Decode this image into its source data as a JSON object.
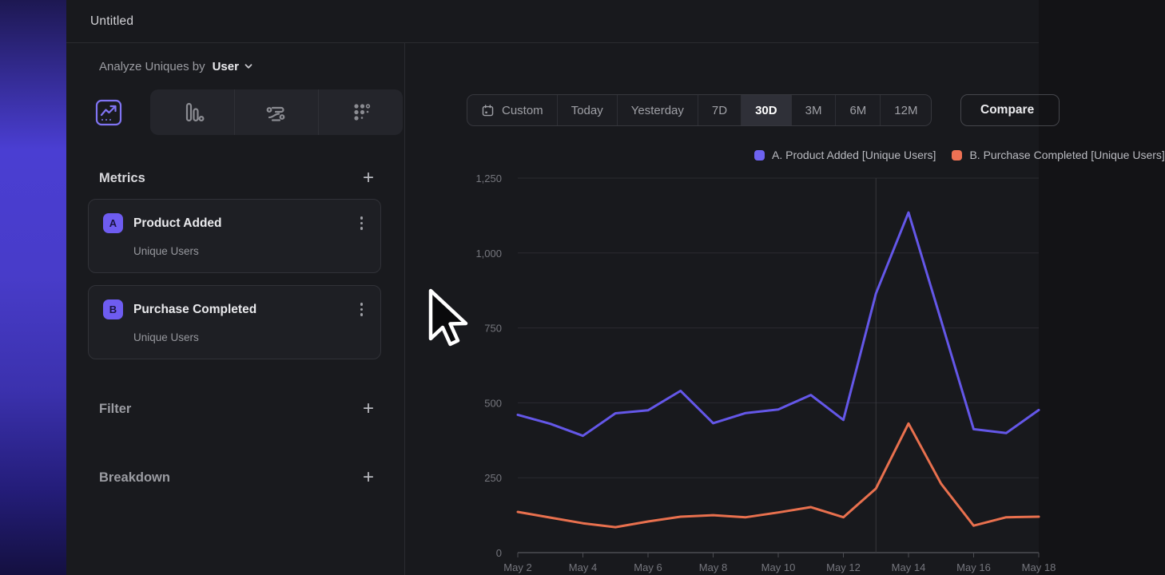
{
  "window": {
    "title": "Untitled"
  },
  "sidebar": {
    "analyze_prefix": "Analyze Uniques by",
    "analyze_value": "User",
    "chart_type_tabs": [
      "line-chart",
      "bar-chart",
      "flow",
      "funnel-dots"
    ],
    "active_chart_type": "line-chart",
    "metrics": {
      "title": "Metrics",
      "items": [
        {
          "badge": "A",
          "name": "Product Added",
          "sub": "Unique Users"
        },
        {
          "badge": "B",
          "name": "Purchase Completed",
          "sub": "Unique Users"
        }
      ]
    },
    "sections": [
      {
        "label": "Filter"
      },
      {
        "label": "Breakdown"
      }
    ]
  },
  "toolbar": {
    "ranges": [
      "Custom",
      "Today",
      "Yesterday",
      "7D",
      "30D",
      "3M",
      "6M",
      "12M"
    ],
    "active_range": "30D",
    "compare_label": "Compare"
  },
  "legend": [
    {
      "label": "A. Product Added [Unique Users]",
      "color": "#6e63f0"
    },
    {
      "label": "B. Purchase Completed [Unique Users]",
      "color": "#ed7154"
    }
  ],
  "chart_data": {
    "type": "line",
    "x": [
      "May 2",
      "May 3",
      "May 4",
      "May 5",
      "May 6",
      "May 7",
      "May 8",
      "May 9",
      "May 10",
      "May 11",
      "May 12",
      "May 13",
      "May 14",
      "May 15",
      "May 16",
      "May 17",
      "May 18"
    ],
    "x_tick_labels": [
      "May 2",
      "May 4",
      "May 6",
      "May 8",
      "May 10",
      "May 12",
      "May 14",
      "May 16",
      "May 18"
    ],
    "series": [
      {
        "name": "A. Product Added [Unique Users]",
        "color": "#6457e8",
        "values": [
          460,
          430,
          390,
          465,
          475,
          540,
          432,
          466,
          478,
          526,
          443,
          865,
          1135,
          775,
          412,
          399,
          476
        ]
      },
      {
        "name": "B. Purchase Completed [Unique Users]",
        "color": "#e8704e",
        "values": [
          136,
          117,
          98,
          85,
          104,
          120,
          125,
          118,
          134,
          152,
          118,
          214,
          431,
          230,
          90,
          118,
          120
        ]
      }
    ],
    "ylim": [
      0,
      1250
    ],
    "y_ticks": [
      0,
      250,
      500,
      750,
      1000,
      1250
    ],
    "y_tick_labels": [
      "0",
      "250",
      "500",
      "750",
      "1,000",
      "1,250"
    ],
    "vline_at": "May 13",
    "grid": true,
    "legend_position": "top-right"
  },
  "colors": {
    "accent_purple": "#6e5cf0",
    "accent_orange": "#ed7154",
    "panel_bg": "#18191d",
    "grid_line": "#2a2b30"
  }
}
